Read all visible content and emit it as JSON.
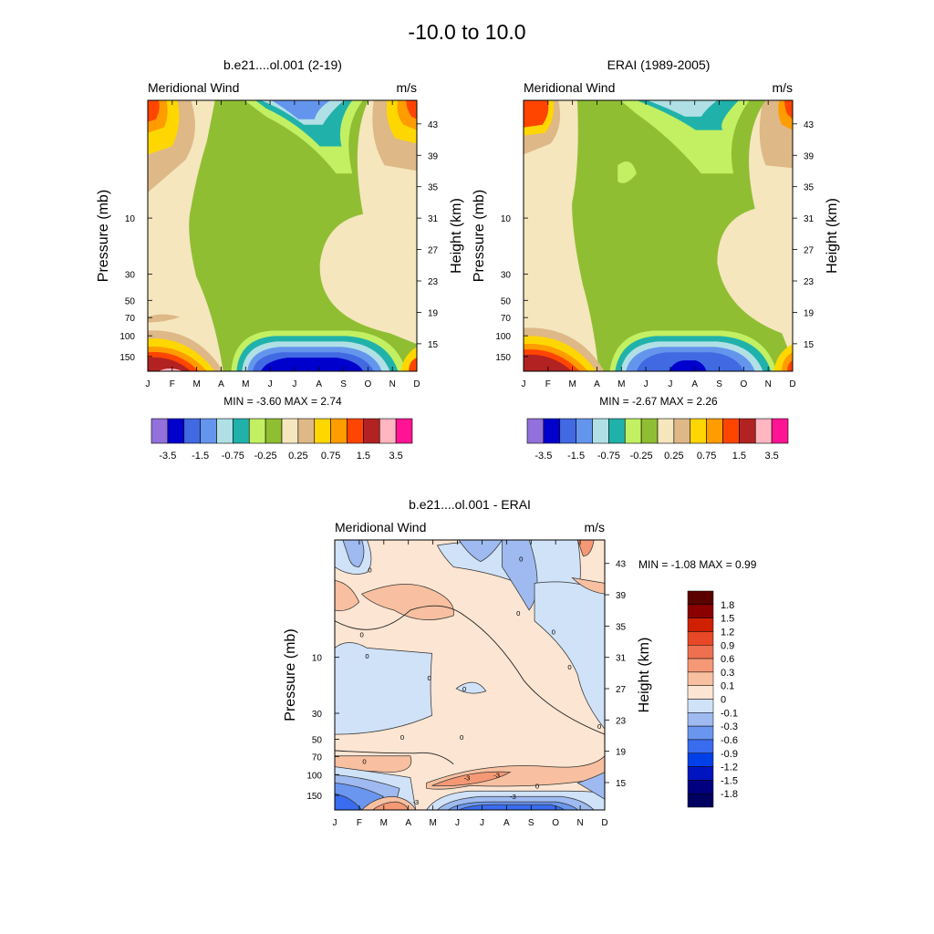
{
  "page_title": "-10.0 to  10.0",
  "months": [
    "J",
    "F",
    "M",
    "A",
    "M",
    "J",
    "J",
    "A",
    "S",
    "O",
    "N",
    "D"
  ],
  "pressure_ticks": [
    "10",
    "30",
    "50",
    "70",
    "100",
    "150"
  ],
  "height_ticks": [
    "43",
    "39",
    "35",
    "31",
    "27",
    "23",
    "19",
    "15"
  ],
  "ylabel_left": "Pressure (mb)",
  "ylabel_right": "Height (km)",
  "variable": "Meridional Wind",
  "units": "m/s",
  "colors": {
    "abs_fills": [
      "#9370DB",
      "#0000CD",
      "#4169E1",
      "#6495ED",
      "#B0E0E6",
      "#20B2AA",
      "#C2F062",
      "#90BE32",
      "#F5E6BE",
      "#DEB887",
      "#FFD700",
      "#FF9C00",
      "#FF4500",
      "#B22222",
      "#FFB6C1",
      "#FF1493"
    ],
    "diff_fills": [
      "#000080",
      "#0015C0",
      "#0040E8",
      "#3A6CF0",
      "#6A96F0",
      "#9EBAF0",
      "#CFE2F8",
      "#FCE5D2",
      "#F8C0A0",
      "#F59875",
      "#EE7050",
      "#E84828",
      "#D02000",
      "#8B0000"
    ]
  },
  "chart_data": [
    {
      "id": "model",
      "type": "contour",
      "title": "b.e21....ol.001 (2-19)",
      "left_label": "Meridional Wind",
      "right_label": "m/s",
      "min_label": "MIN =  -3.60  MAX =   2.74",
      "min": -3.6,
      "max": 2.74,
      "colorbar_labels": [
        "-3.5",
        "-1.5",
        "-0.75",
        "-0.25",
        "0.25",
        "0.75",
        "1.5",
        "3.5"
      ]
    },
    {
      "id": "obs",
      "type": "contour",
      "title": "ERAI (1989-2005)",
      "left_label": "Meridional Wind",
      "right_label": "m/s",
      "min_label": "MIN =  -2.67  MAX =   2.26",
      "min": -2.67,
      "max": 2.26,
      "colorbar_labels": [
        "-3.5",
        "-1.5",
        "-0.75",
        "-0.25",
        "0.25",
        "0.75",
        "1.5",
        "3.5"
      ]
    },
    {
      "id": "diff",
      "type": "contour",
      "title": "b.e21....ol.001 - ERAI",
      "left_label": "Meridional Wind",
      "right_label": "m/s",
      "min_label": "MIN =  -1.08  MAX =   0.99",
      "min": -1.08,
      "max": 0.99,
      "colorbar_labels": [
        "1.8",
        "1.5",
        "1.2",
        "0.9",
        "0.6",
        "0.3",
        "0.1",
        "0",
        "-0.1",
        "-0.3",
        "-0.6",
        "-0.9",
        "-1.2",
        "-1.5",
        "-1.8"
      ],
      "contour_labels": [
        "0",
        "0",
        "0",
        "0",
        "0",
        "0",
        "0",
        "0",
        "0",
        "0",
        "0",
        "-3",
        "-3",
        "-3",
        "-3",
        "0",
        "0",
        "0"
      ]
    }
  ]
}
